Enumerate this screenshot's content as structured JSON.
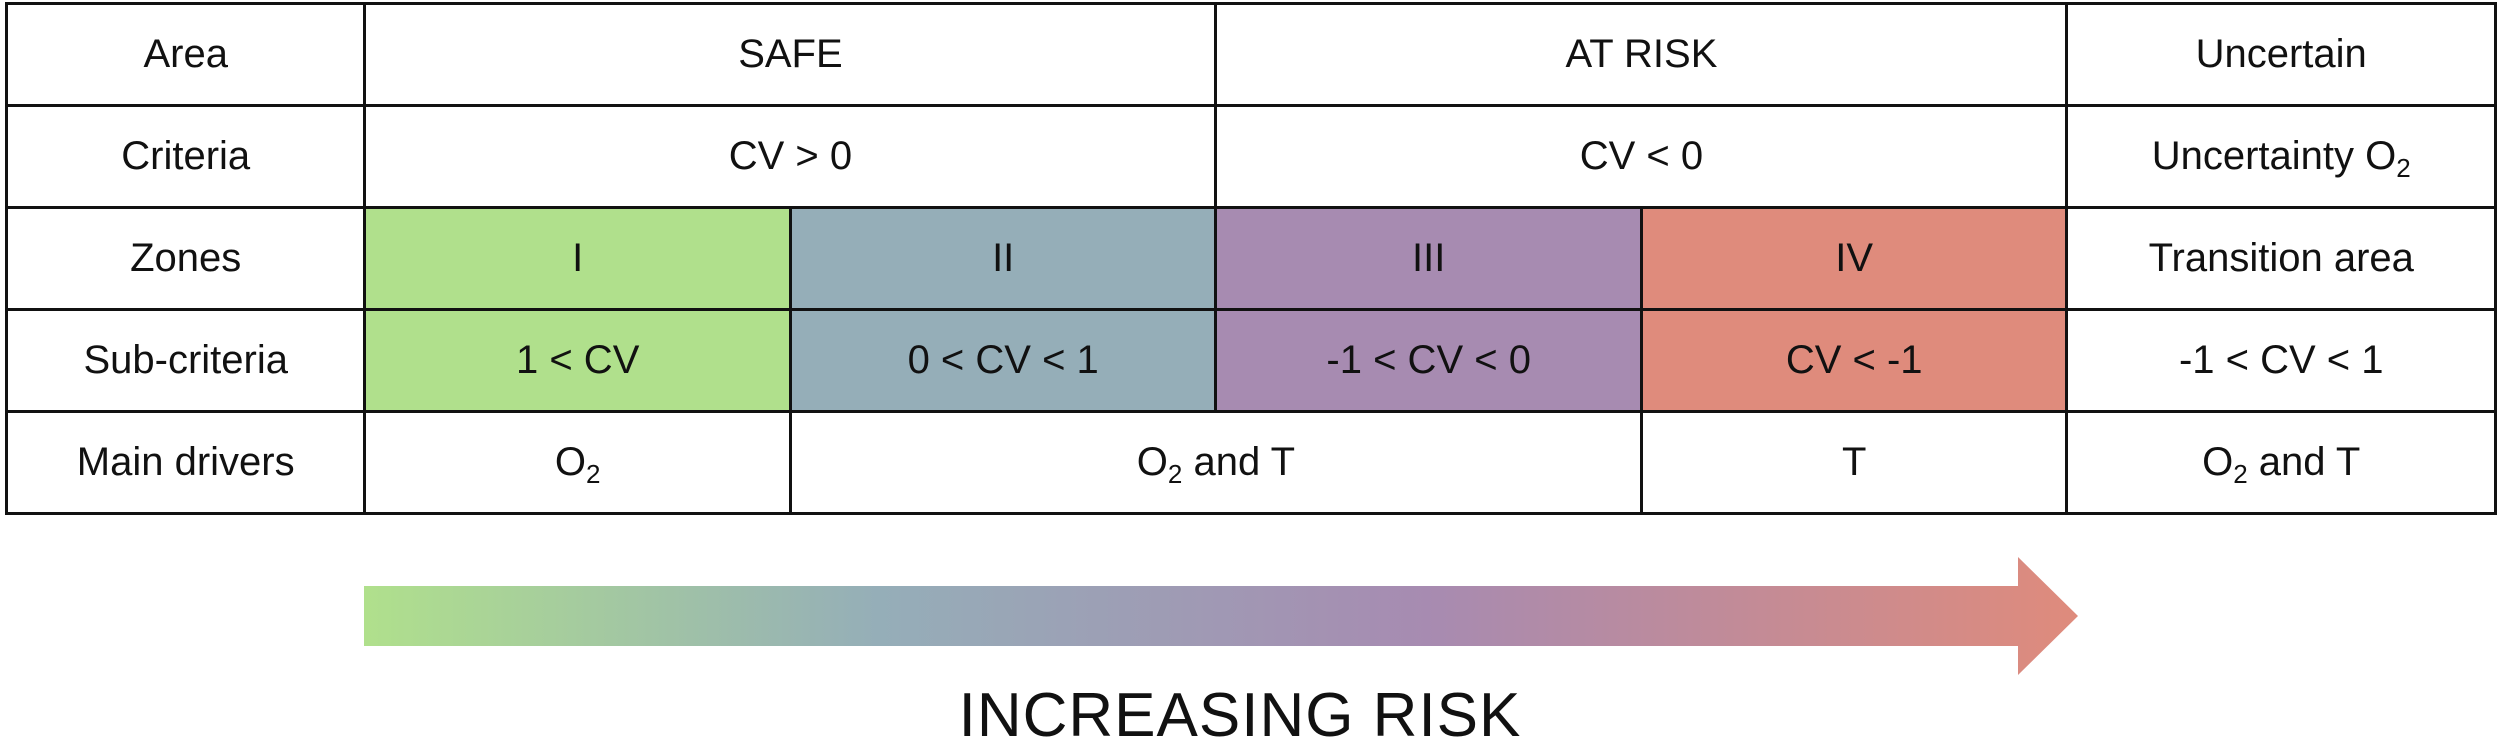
{
  "colors": {
    "zone_I": "#b0e08c",
    "zone_II": "#95aeb8",
    "zone_III": "#a78bb1",
    "zone_IV": "#df8b7c",
    "border": "#111111"
  },
  "table": {
    "row_area": {
      "label": "Area",
      "safe": "SAFE",
      "at_risk": "AT RISK",
      "uncertain": "Uncertain"
    },
    "row_criteria": {
      "label": "Criteria",
      "safe": "CV > 0",
      "at_risk": "CV < 0",
      "uncertain_text": "Uncertainty O",
      "uncertain_sub": "2"
    },
    "row_zones": {
      "label": "Zones",
      "z1": "I",
      "z2": "II",
      "z3": "III",
      "z4": "IV",
      "uncertain": "Transition area"
    },
    "row_subcriteria": {
      "label": "Sub-criteria",
      "z1": "1 < CV",
      "z2": "0 < CV < 1",
      "z3": "-1 < CV < 0",
      "z4": "CV < -1",
      "uncertain": "-1 < CV < 1"
    },
    "row_drivers": {
      "label": "Main drivers",
      "z1_text": "O",
      "z1_sub": "2",
      "z23_text": "O",
      "z23_sub": "2",
      "z23_tail": " and T",
      "z4": "T",
      "unc_text": "O",
      "unc_sub": "2",
      "unc_tail": " and T"
    }
  },
  "arrow": {
    "label": "INCREASING RISK"
  }
}
